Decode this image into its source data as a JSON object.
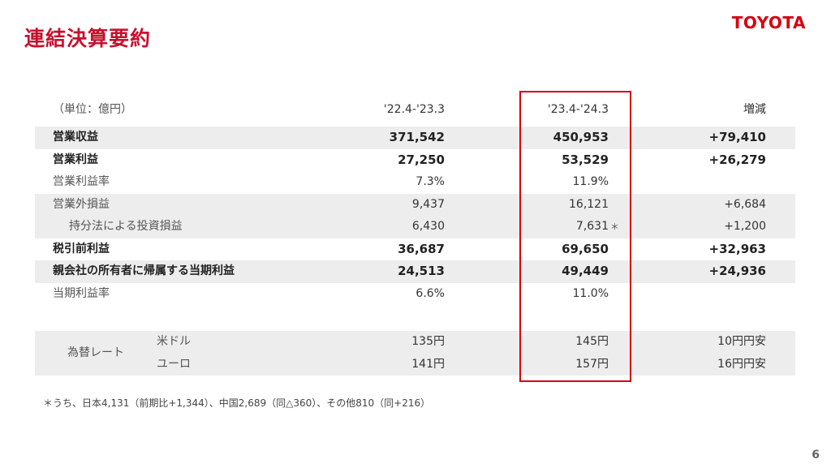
{
  "slide": {
    "title": "連結決算要約",
    "logo": "TOYOTA",
    "page_number": "6",
    "footnote": "＊うち、日本4,131（前期比+1,344）、中国2,689（同△360）、その他810（同+216）"
  },
  "table": {
    "header": {
      "unit": "（単位：億円）",
      "prev": "'22.4-'23.3",
      "cur": "'23.4-'24.3",
      "diff": "増減"
    },
    "rows": [
      {
        "label": "営業収益",
        "prev": "371,542",
        "cur": "450,953",
        "diff": "+79,410"
      },
      {
        "label": "営業利益",
        "prev": "27,250",
        "cur": "53,529",
        "diff": "+26,279"
      },
      {
        "label": "営業利益率",
        "prev": "7.3%",
        "cur": "11.9%",
        "diff": ""
      },
      {
        "label": "営業外損益",
        "prev": "9,437",
        "cur": "16,121",
        "diff": "+6,684"
      },
      {
        "label": "持分法による投資損益",
        "prev": "6,430",
        "cur": "7,631",
        "cur_note": "＊",
        "diff": "+1,200"
      },
      {
        "label": "税引前利益",
        "prev": "36,687",
        "cur": "69,650",
        "diff": "+32,963"
      },
      {
        "label": "親会社の所有者に帰属する当期利益",
        "prev": "24,513",
        "cur": "49,449",
        "diff": "+24,936"
      },
      {
        "label": "当期利益率",
        "prev": "6.6%",
        "cur": "11.0%",
        "diff": ""
      }
    ],
    "fx": {
      "label": "為替レート",
      "usd": {
        "name": "米ドル",
        "prev": "135円",
        "cur": "145円",
        "diff": "10円円安"
      },
      "eur": {
        "name": "ユーロ",
        "prev": "141円",
        "cur": "157円",
        "diff": "16円円安"
      }
    }
  },
  "colors": {
    "brand_red": "#d7000f",
    "title_red": "#c8102e",
    "row_shade": "#ededed"
  }
}
